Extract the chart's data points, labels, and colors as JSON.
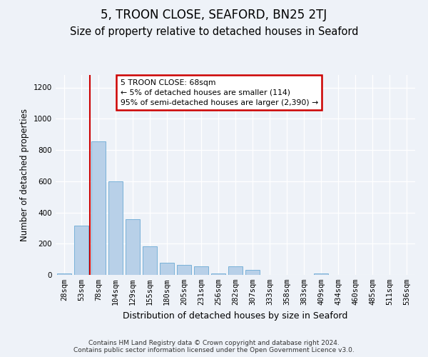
{
  "title": "5, TROON CLOSE, SEAFORD, BN25 2TJ",
  "subtitle": "Size of property relative to detached houses in Seaford",
  "xlabel": "Distribution of detached houses by size in Seaford",
  "ylabel": "Number of detached properties",
  "categories": [
    "28sqm",
    "53sqm",
    "78sqm",
    "104sqm",
    "129sqm",
    "155sqm",
    "180sqm",
    "205sqm",
    "231sqm",
    "256sqm",
    "282sqm",
    "307sqm",
    "333sqm",
    "358sqm",
    "383sqm",
    "409sqm",
    "434sqm",
    "460sqm",
    "485sqm",
    "511sqm",
    "536sqm"
  ],
  "values": [
    10,
    315,
    855,
    600,
    355,
    185,
    80,
    65,
    55,
    10,
    55,
    30,
    0,
    0,
    0,
    10,
    0,
    0,
    0,
    0,
    0
  ],
  "bar_color": "#b8d0e8",
  "bar_edge_color": "#6aaad4",
  "vline_color": "#cc0000",
  "annotation_text": "5 TROON CLOSE: 68sqm\n← 5% of detached houses are smaller (114)\n95% of semi-detached houses are larger (2,390) →",
  "annotation_box_facecolor": "#ffffff",
  "annotation_box_edgecolor": "#cc0000",
  "ylim": [
    0,
    1280
  ],
  "yticks": [
    0,
    200,
    400,
    600,
    800,
    1000,
    1200
  ],
  "background_color": "#eef2f8",
  "footer_text": "Contains HM Land Registry data © Crown copyright and database right 2024.\nContains public sector information licensed under the Open Government Licence v3.0.",
  "title_fontsize": 12,
  "subtitle_fontsize": 10.5,
  "ylabel_fontsize": 8.5,
  "xlabel_fontsize": 9,
  "tick_fontsize": 7.5
}
